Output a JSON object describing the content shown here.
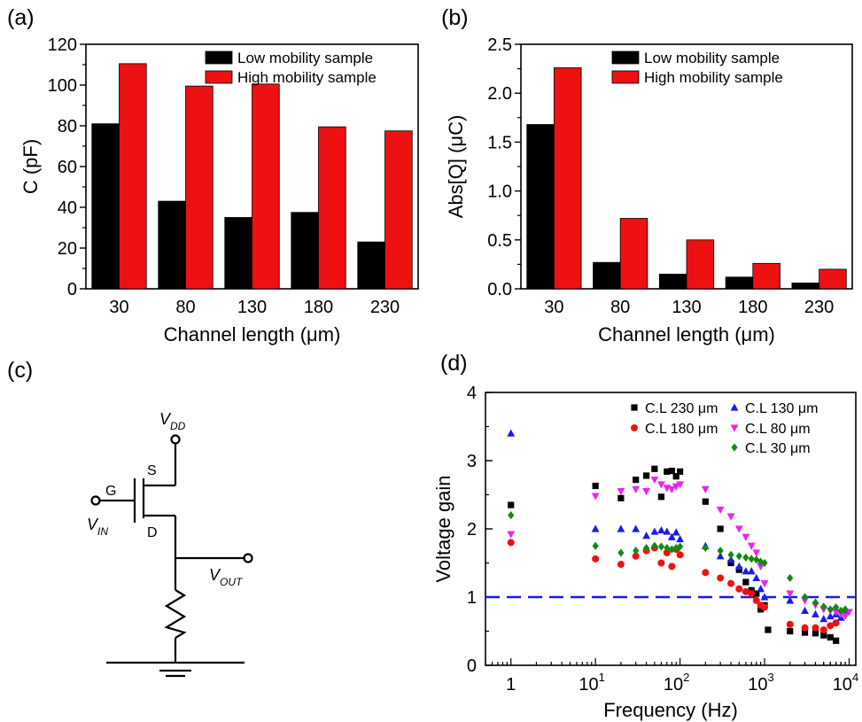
{
  "panels": {
    "a": "(a)",
    "b": "(b)",
    "c": "(c)",
    "d": "(d)"
  },
  "colors": {
    "low": "#000000",
    "high": "#ee1111",
    "ref_line": "#1a1aee"
  },
  "chart_data": [
    {
      "type": "bar",
      "panel": "(a)",
      "categories": [
        "30",
        "80",
        "130",
        "180",
        "230"
      ],
      "series": [
        {
          "name": "Low mobility sample",
          "color": "#000000",
          "values": [
            81,
            43,
            35,
            37.5,
            23
          ]
        },
        {
          "name": "High mobility sample",
          "color": "#ee1111",
          "values": [
            110.5,
            99.5,
            100.5,
            79.5,
            77.5
          ]
        }
      ],
      "xlabel": "Channel length (μm)",
      "ylabel": "C (pF)",
      "ylim": [
        0,
        120
      ],
      "yticks": [
        "0",
        "20",
        "40",
        "60",
        "80",
        "100",
        "120"
      ],
      "legend": "top-right"
    },
    {
      "type": "bar",
      "panel": "(b)",
      "categories": [
        "30",
        "80",
        "130",
        "180",
        "230"
      ],
      "series": [
        {
          "name": "Low mobility sample",
          "color": "#000000",
          "values": [
            1.68,
            0.27,
            0.15,
            0.12,
            0.06
          ]
        },
        {
          "name": "High mobility sample",
          "color": "#ee1111",
          "values": [
            2.26,
            0.72,
            0.5,
            0.26,
            0.2
          ]
        }
      ],
      "xlabel": "Channel length (μm)",
      "ylabel": "Abs[Q] (μC)",
      "ylim": [
        0,
        2.5
      ],
      "yticks": [
        "0.0",
        "0.5",
        "1.0",
        "1.5",
        "2.0",
        "2.5"
      ],
      "legend": "top-right"
    },
    {
      "type": "scatter",
      "panel": "(d)",
      "x_scale": "log",
      "xlim": [
        0.5,
        12000
      ],
      "ylim": [
        0,
        4
      ],
      "xlabel": "Frequency (Hz)",
      "ylabel": "Voltage gain",
      "xticks": [
        {
          "base": "10",
          "exp": "0"
        },
        {
          "base": "10",
          "exp": "1"
        },
        {
          "base": "10",
          "exp": "2"
        },
        {
          "base": "10",
          "exp": "3"
        },
        {
          "base": "10",
          "exp": "4"
        }
      ],
      "yticks": [
        "0",
        "1",
        "2",
        "3",
        "4"
      ],
      "reference_line": {
        "y": 1,
        "style": "dashed",
        "color": "#1a1aee"
      },
      "legend": "top-right",
      "series": [
        {
          "name": "C.L 230 μm",
          "marker": "square",
          "color": "#000000",
          "x": [
            1,
            10,
            20,
            30,
            40,
            50,
            60,
            70,
            80,
            90,
            100,
            200,
            300,
            400,
            500,
            600,
            700,
            800,
            900,
            1000,
            1100,
            2000,
            3000,
            4000,
            5000,
            6000,
            7000
          ],
          "y": [
            2.35,
            2.63,
            2.45,
            2.72,
            2.78,
            2.88,
            2.47,
            2.84,
            2.85,
            2.77,
            2.84,
            2.4,
            2.0,
            1.5,
            1.4,
            1.22,
            1.1,
            1.05,
            0.82,
            0.88,
            0.52,
            0.5,
            0.48,
            0.47,
            0.44,
            0.41,
            0.36
          ]
        },
        {
          "name": "C.L 180 μm",
          "marker": "circle",
          "color": "#ee1111",
          "x": [
            1,
            10,
            20,
            30,
            40,
            50,
            60,
            70,
            80,
            90,
            100,
            200,
            300,
            400,
            500,
            600,
            700,
            800,
            900,
            1000,
            2000,
            3000,
            4000,
            5000,
            6000,
            7000
          ],
          "y": [
            1.8,
            1.56,
            1.48,
            1.6,
            1.68,
            1.72,
            1.5,
            1.65,
            1.45,
            1.7,
            1.62,
            1.36,
            1.28,
            1.2,
            1.12,
            1.08,
            1.05,
            0.95,
            0.88,
            0.85,
            0.6,
            0.55,
            0.55,
            0.52,
            0.58,
            0.62
          ]
        },
        {
          "name": "C.L 130 μm",
          "marker": "triangle-up",
          "color": "#1a1aee",
          "x": [
            1,
            10,
            20,
            30,
            40,
            50,
            60,
            70,
            80,
            90,
            100,
            200,
            300,
            400,
            500,
            600,
            700,
            800,
            900,
            1000,
            2000,
            3000,
            4000,
            5000,
            6000,
            7000,
            8000,
            9000
          ],
          "y": [
            3.4,
            2.0,
            2.0,
            2.0,
            1.9,
            1.96,
            1.98,
            1.96,
            1.88,
            1.95,
            1.85,
            1.75,
            1.6,
            1.55,
            1.45,
            1.38,
            1.38,
            1.28,
            1.12,
            1.0,
            0.95,
            0.8,
            0.75,
            0.68,
            0.72,
            0.75,
            0.7,
            0.78
          ]
        },
        {
          "name": "C.L   80 μm",
          "marker": "triangle-down",
          "color": "#ee22ee",
          "x": [
            1,
            10,
            20,
            30,
            40,
            50,
            60,
            70,
            80,
            90,
            100,
            200,
            300,
            400,
            500,
            600,
            700,
            800,
            900,
            1000,
            2000,
            3000,
            4000,
            5000,
            6000,
            7000,
            8000,
            9000,
            10000
          ],
          "y": [
            1.92,
            2.48,
            2.55,
            2.58,
            2.55,
            2.72,
            2.65,
            2.6,
            2.58,
            2.62,
            2.65,
            2.58,
            2.28,
            2.18,
            2.0,
            1.88,
            1.75,
            1.65,
            1.45,
            1.2,
            1.05,
            0.95,
            0.88,
            0.82,
            0.8,
            0.78,
            0.75,
            0.72,
            0.78
          ]
        },
        {
          "name": "C.L   30 μm",
          "marker": "diamond",
          "color": "#128a12",
          "x": [
            1,
            10,
            20,
            30,
            40,
            50,
            60,
            70,
            80,
            90,
            100,
            200,
            300,
            400,
            500,
            600,
            700,
            800,
            900,
            1000,
            2000,
            3000,
            4000,
            5000,
            6000,
            7000,
            8000,
            9000
          ],
          "y": [
            2.2,
            1.75,
            1.65,
            1.68,
            1.72,
            1.75,
            1.74,
            1.72,
            1.7,
            1.72,
            1.74,
            1.72,
            1.68,
            1.62,
            1.6,
            1.58,
            1.56,
            1.55,
            1.52,
            1.5,
            1.28,
            1.0,
            0.92,
            0.86,
            0.82,
            0.85,
            0.8,
            0.82
          ]
        }
      ]
    }
  ],
  "circuit": {
    "vdd": {
      "main": "V",
      "sub": "DD"
    },
    "vin": {
      "main": "V",
      "sub": "IN"
    },
    "vout": {
      "main": "V",
      "sub": "OUT"
    },
    "gate": "G",
    "source": "S",
    "drain": "D"
  }
}
